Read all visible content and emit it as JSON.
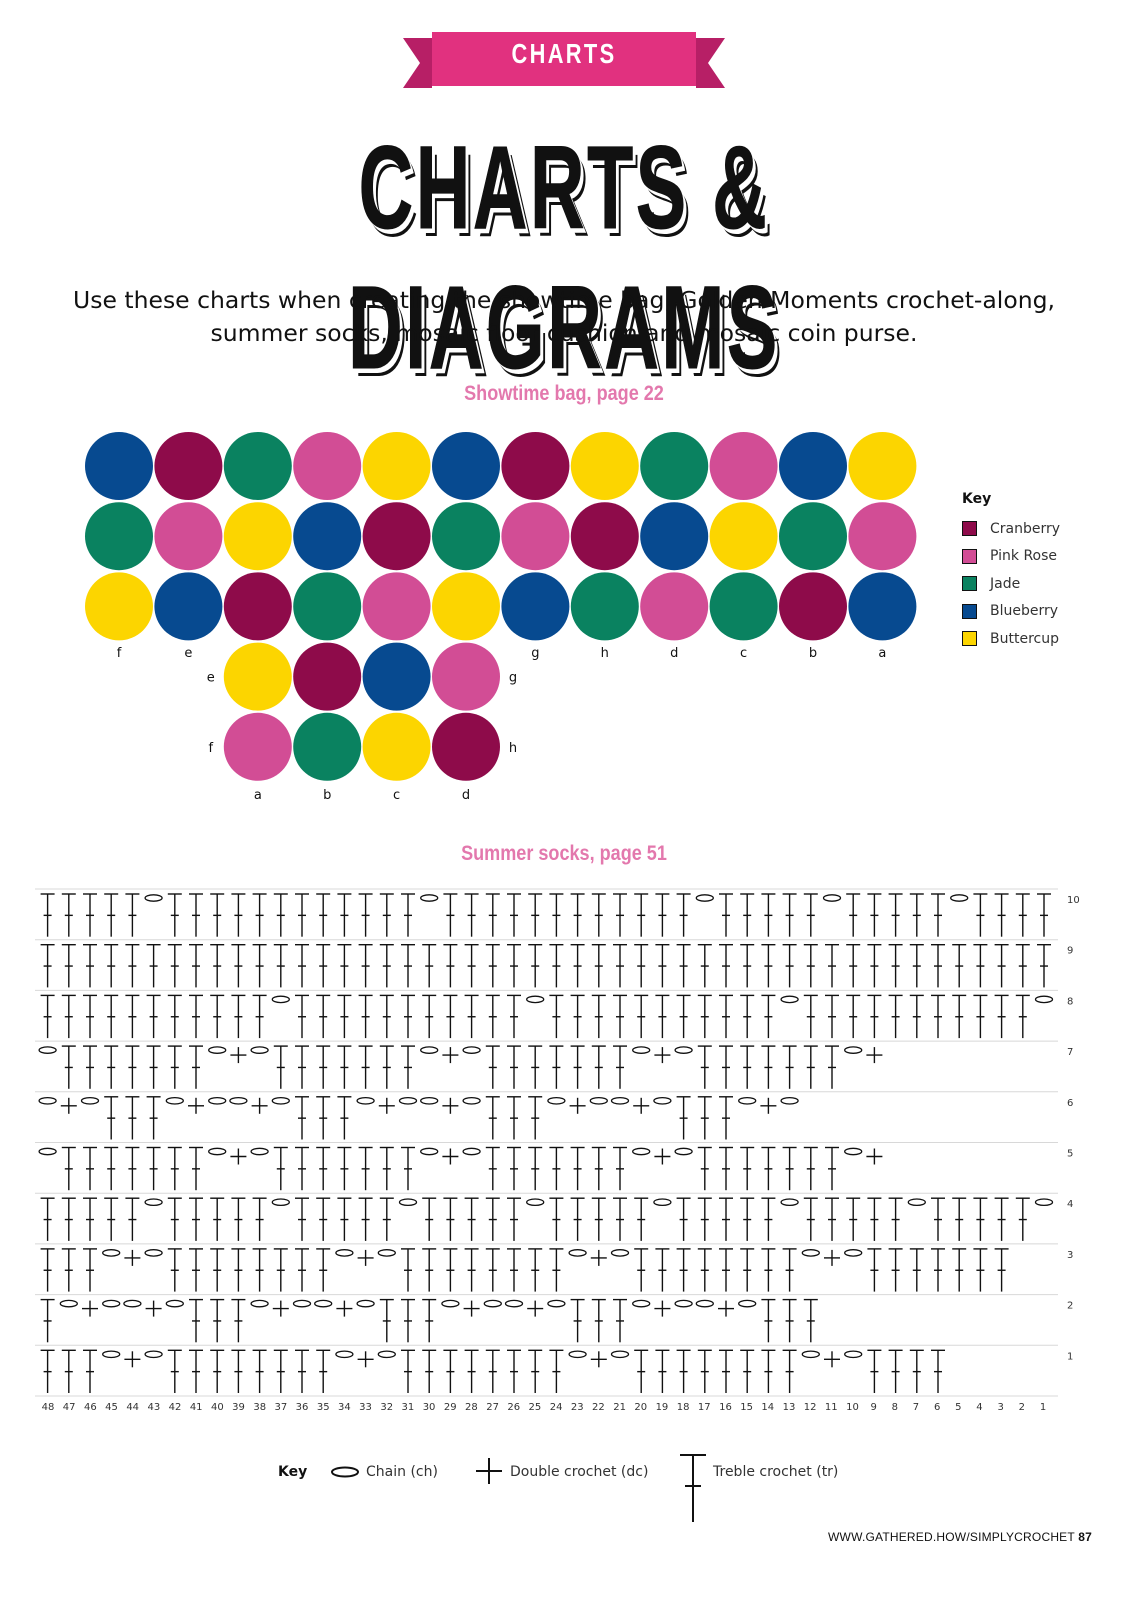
{
  "banner": {
    "label": "CHARTS",
    "color": "#e1317f"
  },
  "title": "CHARTS & DIAGRAMS",
  "intro": {
    "line1": "Use these charts when creating the showtime bag, Golden Moments crochet-along,",
    "line2": "summer socks, mosaic floor cushion and mosaic coin purse."
  },
  "showtime_bag": {
    "heading": "Showtime bag, page 22",
    "heading_color": "#e378ad",
    "colors": {
      "cranberry": "#8e0b4a",
      "pink": "#d24d95",
      "jade": "#0a8260",
      "blueberry": "#074a90",
      "buttercup": "#fcd500"
    },
    "key": {
      "heading": "Key",
      "items": [
        {
          "color_id": "cranberry",
          "label": "Cranberry"
        },
        {
          "color_id": "pink",
          "label": "Pink Rose"
        },
        {
          "color_id": "jade",
          "label": "Jade"
        },
        {
          "color_id": "blueberry",
          "label": "Blueberry"
        },
        {
          "color_id": "buttercup",
          "label": "Buttercup"
        }
      ]
    },
    "top_rows": [
      [
        "blueberry",
        "cranberry",
        "jade",
        "pink",
        "buttercup",
        "blueberry",
        "cranberry",
        "buttercup",
        "jade",
        "pink",
        "blueberry",
        "buttercup"
      ],
      [
        "jade",
        "pink",
        "buttercup",
        "blueberry",
        "cranberry",
        "jade",
        "pink",
        "cranberry",
        "blueberry",
        "buttercup",
        "jade",
        "pink"
      ],
      [
        "buttercup",
        "blueberry",
        "cranberry",
        "jade",
        "pink",
        "buttercup",
        "blueberry",
        "jade",
        "pink",
        "jade",
        "cranberry",
        "blueberry"
      ]
    ],
    "top_column_labels": [
      "f",
      "e",
      "",
      "",
      "",
      "",
      "g",
      "h",
      "d",
      "c",
      "b",
      "a"
    ],
    "bottom_rows": [
      [
        "buttercup",
        "cranberry",
        "blueberry",
        "pink"
      ],
      [
        "pink",
        "jade",
        "buttercup",
        "cranberry"
      ]
    ],
    "bottom_left_labels": [
      "e",
      "f"
    ],
    "bottom_right_labels": [
      "g",
      "h"
    ],
    "bottom_column_labels": [
      "a",
      "b",
      "c",
      "d"
    ]
  },
  "summer_socks": {
    "heading": "Summer socks, page 51",
    "row_numbers": [
      "10",
      "9",
      "8",
      "7",
      "6",
      "5",
      "4",
      "3",
      "2",
      "1"
    ],
    "column_numbers": [
      "48",
      "47",
      "46",
      "45",
      "44",
      "43",
      "42",
      "41",
      "40",
      "39",
      "38",
      "37",
      "36",
      "35",
      "34",
      "33",
      "32",
      "31",
      "30",
      "29",
      "28",
      "27",
      "26",
      "25",
      "24",
      "23",
      "22",
      "21",
      "20",
      "19",
      "18",
      "17",
      "16",
      "15",
      "14",
      "13",
      "12",
      "11",
      "10",
      "9",
      "8",
      "7",
      "6",
      "5",
      "4",
      "3",
      "2",
      "1"
    ],
    "rows": [
      "TTTTTcTTTTTTTTTTTTcTTTTTTTTTTTTcTTTTTcTTTTTcTTTTTT",
      "TTTTTTTTTTTTTTTTTTTTTTTTTTTTTTTTTTTTTTTTTTTTTTTT",
      "TTTTTTTTTTTcTTTTTTTTTTTcTTTTTTTTTTTcTTTTTTTTTTTc",
      "cTTTTTTTc+cTTTTTTTc+cTTTTTTTc+cTTTTTTTc+",
      "c+cTTTc+cc+cTTTc+cc+cTTTc+cc+cTTTc+c",
      "cTTTTTTTc+cTTTTTTTc+cTTTTTTTc+cTTTTTTTc+",
      "TTTTTcTTTTTcTTTTTcTTTTTcTTTTTcTTTTTcTTTTTcTTTTTc",
      "TTTc+cTTTTTTTTc+cTTTTTTTTc+cTTTTTTTTc+cTTTTTTT",
      "Tc+cc+cTTTc+cc+cTTTc+cc+cTTTc+cc+cTTT",
      "TTTc+cTTTTTTTTc+cTTTTTTTTc+cTTTTTTTTc+cTTTT"
    ]
  },
  "stitch_key": {
    "heading": "Key",
    "chain": "Chain (ch)",
    "double_crochet": "Double crochet (dc)",
    "treble_crochet": "Treble crochet (tr)"
  },
  "footer": {
    "url": "WWW.GATHERED.HOW/SIMPLYCROCHET",
    "page": "87"
  }
}
